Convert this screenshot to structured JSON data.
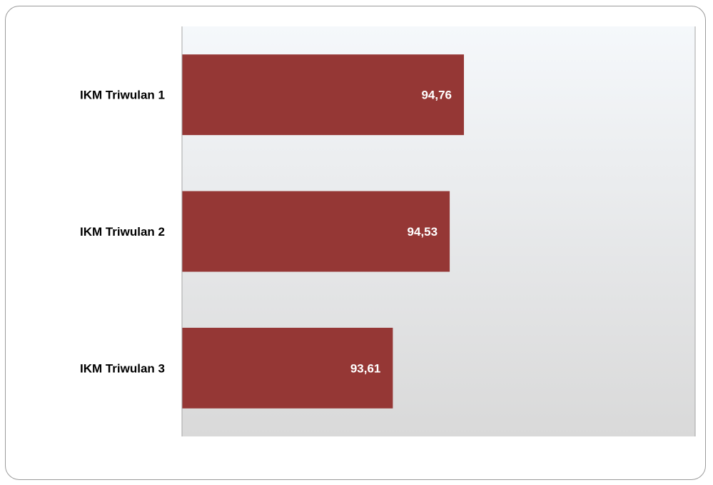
{
  "chart_data": {
    "type": "bar",
    "orientation": "horizontal",
    "categories": [
      "IKM Triwulan 1",
      "IKM Triwulan 2",
      "IKM Triwulan 3"
    ],
    "values": [
      94.76,
      94.53,
      93.61
    ],
    "value_labels": [
      "94,76",
      "94,53",
      "93,61"
    ],
    "xlim": [
      90.2,
      98.5
    ],
    "grid": false,
    "legend": "none",
    "colors": {
      "bar": "#953735",
      "plot_bg_top": "#f5f8fb",
      "plot_bg_bottom": "#d9d9d9",
      "plot_border": "#a6a6a6"
    }
  }
}
